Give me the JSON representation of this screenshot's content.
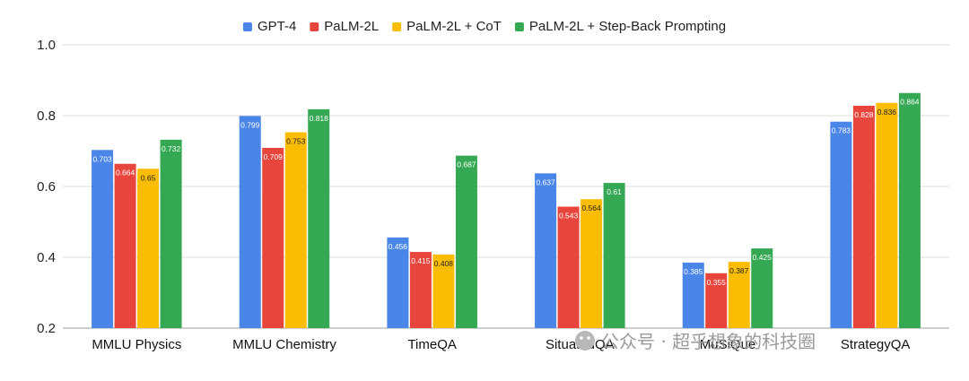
{
  "chart_data": {
    "type": "bar",
    "title": "",
    "xlabel": "",
    "ylabel": "",
    "ylim": [
      0.2,
      1.0
    ],
    "yticks": [
      0.2,
      0.4,
      0.6,
      0.8,
      1.0
    ],
    "ytick_labels": [
      "0.2",
      "0.4",
      "0.6",
      "0.8",
      "1.0"
    ],
    "grid": true,
    "legend_position": "top-center",
    "categories": [
      "MMLU Physics",
      "MMLU Chemistry",
      "TimeQA",
      "SituatedQA",
      "MuSiQue",
      "StrategyQA"
    ],
    "series": [
      {
        "name": "GPT-4",
        "color": "#4a86e8",
        "label_color": "#ffffff",
        "values": [
          0.703,
          0.799,
          0.456,
          0.637,
          0.385,
          0.783
        ],
        "labels": [
          "0.703",
          "0.799",
          "0.456",
          "0.637",
          "0.385",
          "0.783"
        ]
      },
      {
        "name": "PaLM-2L",
        "color": "#e8453c",
        "label_color": "#ffffff",
        "values": [
          0.664,
          0.709,
          0.415,
          0.543,
          0.355,
          0.828
        ],
        "labels": [
          "0.664",
          "0.709",
          "0.415",
          "0.543",
          "0.355",
          "0.828"
        ]
      },
      {
        "name": "PaLM-2L + CoT",
        "color": "#fbbc04",
        "label_color": "#222222",
        "values": [
          0.65,
          0.753,
          0.408,
          0.564,
          0.387,
          0.836
        ],
        "labels": [
          "0.65",
          "0.753",
          "0.408",
          "0.564",
          "0.387",
          "0.836"
        ]
      },
      {
        "name": "PaLM-2L + Step-Back Prompting",
        "color": "#34a853",
        "label_color": "#ffffff",
        "values": [
          0.732,
          0.818,
          0.687,
          0.61,
          0.425,
          0.864
        ],
        "labels": [
          "0.732",
          "0.818",
          "0.687",
          "0.61",
          "0.425",
          "0.864"
        ]
      }
    ]
  },
  "watermark": {
    "text": "公众号 · 超乎想象的科技圈",
    "color": "#9a9a9a"
  }
}
